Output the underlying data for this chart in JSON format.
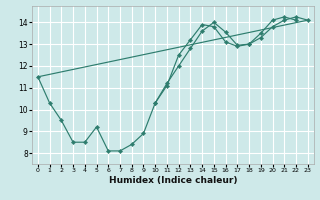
{
  "xlabel": "Humidex (Indice chaleur)",
  "background_color": "#cee9e9",
  "grid_color": "#ffffff",
  "line_color": "#2e7d6e",
  "xlim": [
    -0.5,
    23.5
  ],
  "ylim": [
    7.5,
    14.75
  ],
  "xticks": [
    0,
    1,
    2,
    3,
    4,
    5,
    6,
    7,
    8,
    9,
    10,
    11,
    12,
    13,
    14,
    15,
    16,
    17,
    18,
    19,
    20,
    21,
    22,
    23
  ],
  "yticks": [
    8,
    9,
    10,
    11,
    12,
    13,
    14
  ],
  "series1_x": [
    0,
    1,
    2,
    3,
    4,
    5,
    6,
    7,
    8,
    9,
    10,
    11,
    12,
    13,
    14,
    15,
    16,
    17,
    18,
    19,
    20,
    21,
    22
  ],
  "series1_y": [
    11.5,
    10.3,
    9.5,
    8.5,
    8.5,
    9.2,
    8.1,
    8.1,
    8.4,
    8.9,
    10.3,
    11.1,
    12.5,
    13.2,
    13.9,
    13.8,
    13.1,
    12.9,
    13.0,
    13.5,
    14.1,
    14.25,
    14.1
  ],
  "series2_x": [
    10,
    11,
    12,
    13,
    14,
    15,
    16,
    17,
    18,
    19,
    20,
    21,
    22,
    23
  ],
  "series2_y": [
    10.3,
    11.2,
    12.0,
    12.8,
    13.6,
    14.0,
    13.55,
    12.95,
    13.0,
    13.3,
    13.8,
    14.1,
    14.25,
    14.1
  ],
  "series3_x": [
    0,
    23
  ],
  "series3_y": [
    11.5,
    14.1
  ]
}
